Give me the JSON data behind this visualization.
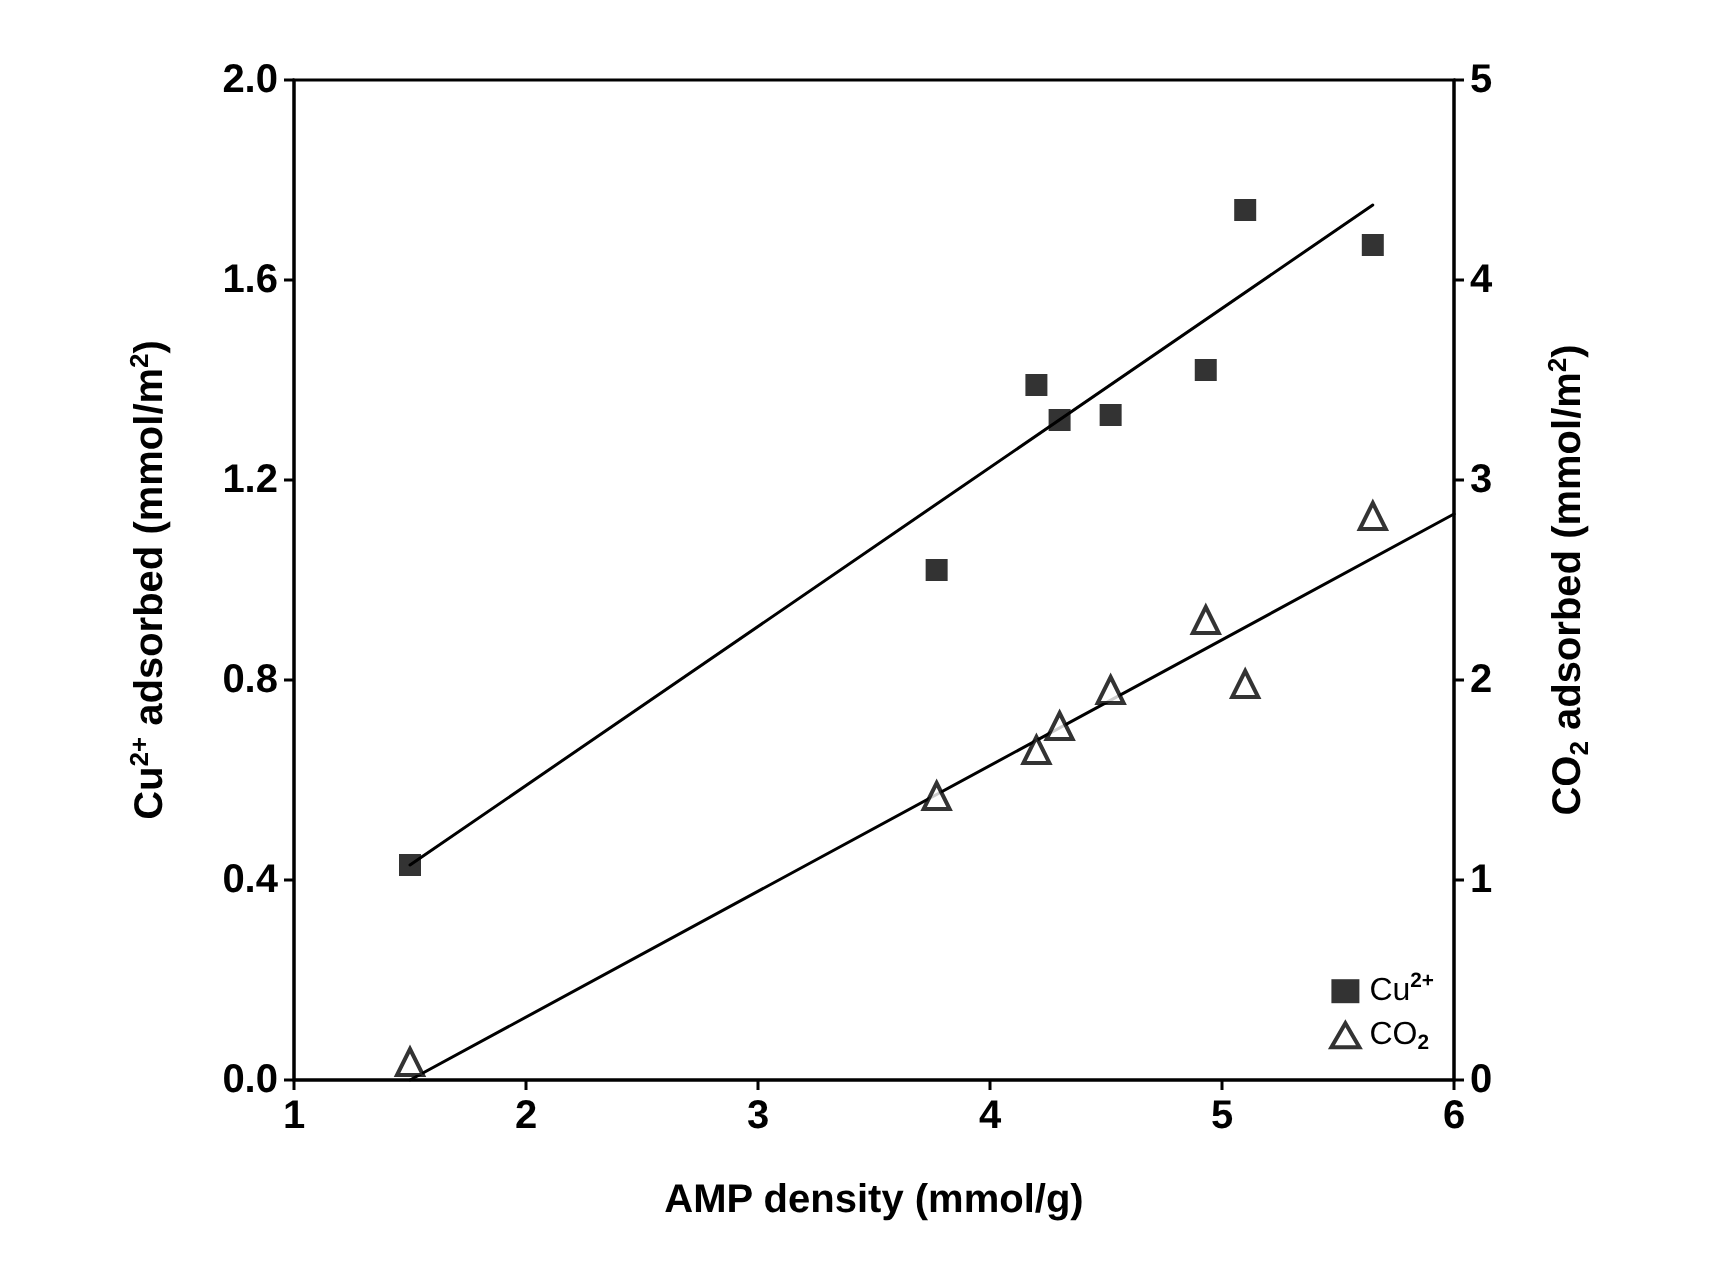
{
  "chart_data": {
    "type": "scatter",
    "xlabel": "AMP density (mmol/g)",
    "ylabel": "Cu$^{2+}$ adsorbed (mmol/m$^{2}$)",
    "y2label": "CO$_{2}$ adsorbed (mmol/m$^{2}$)",
    "xlim": [
      1,
      6
    ],
    "xticks": [
      1,
      2,
      3,
      4,
      5,
      6
    ],
    "ylim": [
      0,
      2
    ],
    "yticks": [
      {
        "value": 0,
        "label": "0.0"
      },
      {
        "value": 0.4,
        "label": "0.4"
      },
      {
        "value": 0.8,
        "label": "0.8"
      },
      {
        "value": 1.2,
        "label": "1.2"
      },
      {
        "value": 1.6,
        "label": "1.6"
      },
      {
        "value": 2,
        "label": "2.0"
      }
    ],
    "y2lim": [
      0,
      5
    ],
    "y2ticks": [
      0,
      1,
      2,
      3,
      4,
      5
    ],
    "legend": "bottom right",
    "grid": false,
    "series": [
      {
        "name": "Cu$^{2+}$",
        "marker": "square",
        "color": "#000000",
        "x": [
          1.5,
          3.77,
          4.2,
          4.3,
          4.52,
          4.93,
          5.1,
          5.65
        ],
        "values": [
          0.43,
          1.02,
          1.39,
          1.32,
          1.33,
          1.42,
          1.74,
          1.67
        ]
      },
      {
        "name": "CO$_{2}$",
        "marker": "triangle",
        "axis": "y2",
        "color": "#000000",
        "x": [
          1.5,
          3.77,
          4.2,
          4.3,
          4.52,
          4.93,
          5.1,
          5.65
        ],
        "values": [
          0.09,
          1.42,
          1.65,
          1.77,
          1.95,
          2.3,
          1.98,
          2.82
        ]
      },
      {
        "type": "line",
        "marker": "none",
        "line_style": "solid",
        "color": "#000000",
        "x": [
          1.5,
          5.65
        ],
        "values": [
          0.43,
          1.75
        ]
      },
      {
        "type": "line",
        "marker": "none",
        "line_style": "solid",
        "axis": "y2",
        "color": "#000000",
        "x": [
          1.5,
          6
        ],
        "values": [
          0.0,
          2.83
        ]
      }
    ]
  }
}
